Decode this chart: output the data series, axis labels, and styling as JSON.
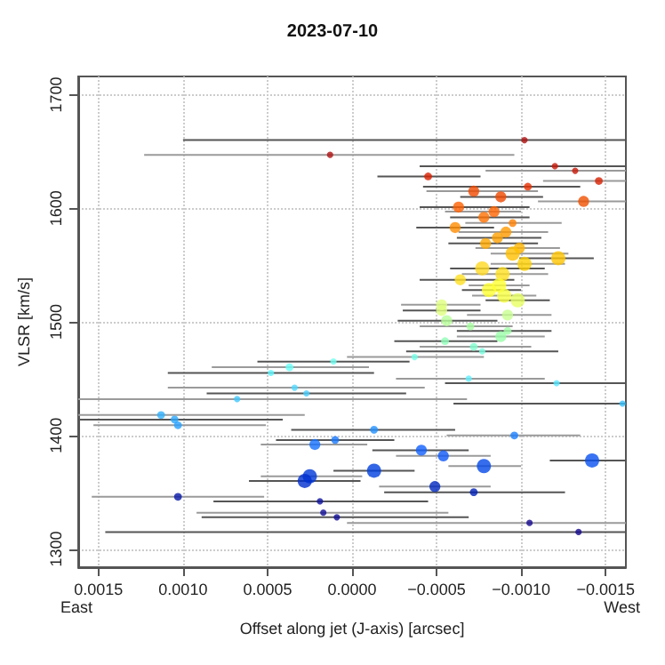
{
  "chart_data": {
    "type": "scatter",
    "title": "2023-07-10",
    "xlabel": "Offset along jet (J-axis) [arcsec]",
    "ylabel": "VLSR [km/s]",
    "annotations": [
      "East",
      "West"
    ],
    "xlim": [
      0.00162,
      -0.00162
    ],
    "ylim": [
      1284,
      1716
    ],
    "xticks": [
      {
        "value": 0.0015,
        "label": "0.0015"
      },
      {
        "value": 0.001,
        "label": "0.0010"
      },
      {
        "value": 0.0005,
        "label": "0.0005"
      },
      {
        "value": 0,
        "label": "0.0000"
      },
      {
        "value": -0.0005,
        "label": "−0.0005"
      },
      {
        "value": -0.001,
        "label": "−0.0010"
      },
      {
        "value": -0.0015,
        "label": "−0.0015"
      }
    ],
    "yticks": [
      1300,
      1400,
      1500,
      1600,
      1700
    ],
    "grid": true,
    "marker": "circle",
    "x": [
      -0.00102,
      0.00013,
      -0.0012,
      -0.00132,
      -0.00045,
      -0.00146,
      -0.00104,
      -0.00072,
      -0.00088,
      -0.00137,
      -0.00063,
      -0.00084,
      -0.00078,
      -0.00095,
      -0.00061,
      -0.00091,
      -0.00086,
      -0.00099,
      -0.00079,
      -0.00095,
      -0.00122,
      -0.00102,
      -0.00077,
      -0.00089,
      -0.00064,
      -0.00087,
      -0.00081,
      -0.0009,
      -0.00098,
      -0.00053,
      -0.00053,
      -0.00092,
      -0.00056,
      -0.0007,
      -0.00092,
      -0.00088,
      -0.00055,
      -0.00072,
      -0.00077,
      -0.00037,
      0.00011,
      0.00037,
      0.00048,
      -0.00069,
      -0.00121,
      0.00034,
      0.00027,
      0.00068,
      -0.0016,
      0.00113,
      0.00105,
      0.00103,
      -0.00013,
      -0.00096,
      0.0001,
      0.00022,
      -0.00041,
      -0.00054,
      -0.00142,
      -0.00078,
      -0.00013,
      0.00025,
      0.00028,
      -0.00049,
      -0.00072,
      0.00103,
      0.00019,
      0.00017,
      9e-05,
      -0.00105,
      -0.00134
    ],
    "values": [
      1660,
      1647,
      1637,
      1633,
      1628,
      1624,
      1619,
      1615,
      1610,
      1606,
      1601,
      1597,
      1592,
      1587,
      1583,
      1579,
      1574,
      1565,
      1569,
      1560,
      1556,
      1551,
      1547,
      1542,
      1537,
      1532,
      1528,
      1523,
      1519,
      1515,
      1510,
      1506,
      1501,
      1496,
      1492,
      1487,
      1483,
      1478,
      1474,
      1469,
      1465,
      1460,
      1455,
      1450,
      1446,
      1442,
      1437,
      1432,
      1428,
      1418,
      1414,
      1409,
      1405,
      1400,
      1396,
      1392,
      1387,
      1382,
      1378,
      1373,
      1369,
      1364,
      1360,
      1355,
      1350,
      1346,
      1342,
      1332,
      1328,
      1323,
      1315
    ],
    "sizes": [
      0.2,
      0.2,
      0.2,
      0.2,
      0.3,
      0.3,
      0.3,
      0.6,
      0.6,
      0.6,
      0.6,
      0.6,
      0.6,
      0.3,
      0.6,
      0.6,
      0.6,
      0.6,
      0.6,
      1,
      1,
      1,
      1,
      1,
      0.6,
      1,
      1,
      1,
      1,
      0.6,
      0.6,
      0.6,
      0.6,
      0.3,
      0.3,
      0.6,
      0.3,
      0.3,
      0.2,
      0.2,
      0.2,
      0.3,
      0.2,
      0.2,
      0.2,
      0.2,
      0.2,
      0.2,
      0.2,
      0.3,
      0.3,
      0.3,
      0.3,
      0.3,
      0.3,
      0.6,
      0.6,
      0.6,
      1,
      1,
      1,
      1,
      1,
      0.6,
      0.3,
      0.3,
      0.2,
      0.2,
      0.2,
      0.2,
      0.2
    ],
    "colors": [
      "#b01010",
      "#b01010",
      "#c81808",
      "#c81808",
      "#d82000",
      "#d82000",
      "#e83000",
      "#f04800",
      "#f04800",
      "#f05000",
      "#ff6000",
      "#ff6400",
      "#ff7000",
      "#ff8000",
      "#ff8c00",
      "#ff9a00",
      "#ffa000",
      "#ffb400",
      "#ffa800",
      "#ffc000",
      "#ffc400",
      "#ffd000",
      "#ffd820",
      "#ffe020",
      "#ffe020",
      "#ffff30",
      "#ffff30",
      "#f8ff40",
      "#e8ff60",
      "#e0ff80",
      "#e0ff80",
      "#c8ff90",
      "#b8ff98",
      "#a8ffa0",
      "#a0ffa8",
      "#98ffa8",
      "#90ffb8",
      "#80ffd0",
      "#78ffe0",
      "#70ffe8",
      "#70fff0",
      "#68fff8",
      "#60f8ff",
      "#60f0ff",
      "#58e8ff",
      "#50d8ff",
      "#48d0ff",
      "#40c8ff",
      "#38c0ff",
      "#30b0ff",
      "#2aa8ff",
      "#25a0ff",
      "#2090ff",
      "#1a80ff",
      "#1878ff",
      "#1470ff",
      "#1060ff",
      "#0c58f8",
      "#0850f0",
      "#0448e8",
      "#0040e0",
      "#0038d8",
      "#0030d0",
      "#0028c0",
      "#0020b8",
      "#0818a8",
      "#0c10a0",
      "#100c98",
      "#100c98",
      "#140890",
      "#140890"
    ],
    "xerrors": [
      [
        -0.00162,
        0.001
      ],
      [
        -0.00096,
        0.00123
      ],
      [
        -0.00162,
        -0.0004
      ],
      [
        -0.00162,
        -0.00079
      ],
      [
        -0.00076,
        -0.00015
      ],
      [
        -0.00162,
        -0.00113
      ],
      [
        -0.00135,
        -0.00042
      ],
      [
        -0.0011,
        -0.00044
      ],
      [
        -0.00113,
        -0.00064
      ],
      [
        -0.00162,
        -0.0011
      ],
      [
        -0.00105,
        -0.0004
      ],
      [
        -0.001,
        -0.00055
      ],
      [
        -0.00105,
        -0.00058
      ],
      [
        -0.00124,
        -0.00067
      ],
      [
        -0.00084,
        -0.00038
      ],
      [
        -0.00116,
        -0.00063
      ],
      [
        -0.00112,
        -0.00062
      ],
      [
        -0.00123,
        -0.00073
      ],
      [
        -0.0011,
        -0.00057
      ],
      [
        -0.00128,
        -0.00082
      ],
      [
        -0.00143,
        -0.00099
      ],
      [
        -0.00126,
        -0.00082
      ],
      [
        -0.00114,
        -0.00058
      ],
      [
        -0.00116,
        -0.00065
      ],
      [
        -0.00096,
        -0.0004
      ],
      [
        -0.00105,
        -0.00069
      ],
      [
        -0.001,
        -0.00065
      ],
      [
        -0.00109,
        -0.00071
      ],
      [
        -0.00117,
        -0.00079
      ],
      [
        -0.00076,
        -0.00029
      ],
      [
        -0.00076,
        -0.0003
      ],
      [
        -0.00118,
        -0.00068
      ],
      [
        -0.00086,
        -0.00027
      ],
      [
        -0.00095,
        -0.0004
      ],
      [
        -0.00118,
        -0.00062
      ],
      [
        -0.00114,
        -0.00062
      ],
      [
        -0.00086,
        -0.00025
      ],
      [
        -0.00106,
        -0.0004
      ],
      [
        -0.00122,
        -0.00032
      ],
      [
        -0.00078,
        3e-05
      ],
      [
        -0.00034,
        0.00056
      ],
      [
        -0.0001,
        0.00083
      ],
      [
        -0.00013,
        0.00109
      ],
      [
        -0.00114,
        -0.00026
      ],
      [
        -0.00162,
        -0.00055
      ],
      [
        -0.00043,
        0.00109
      ],
      [
        -0.00032,
        0.00086
      ],
      [
        -0.00068,
        0.00162
      ],
      [
        -0.00162,
        -0.0006
      ],
      [
        0.00028,
        0.00162
      ],
      [
        0.00041,
        0.00162
      ],
      [
        0.00051,
        0.00153
      ],
      [
        -0.00061,
        0.00036
      ],
      [
        -0.00135,
        -0.00056
      ],
      [
        -0.00025,
        0.00045
      ],
      [
        -9e-05,
        0.00054
      ],
      [
        -0.00069,
        -0.00012
      ],
      [
        -0.00082,
        -0.00026
      ],
      [
        -0.00162,
        -0.00117
      ],
      [
        -0.001,
        -0.00057
      ],
      [
        -0.00037,
        0.00011
      ],
      [
        -6e-05,
        0.00054
      ],
      [
        -5e-05,
        0.00061
      ],
      [
        -0.00082,
        -0.00016
      ],
      [
        -0.00126,
        -0.00019
      ],
      [
        0.00052,
        0.00154
      ],
      [
        -0.00045,
        0.00082
      ],
      [
        -0.00057,
        0.00092
      ],
      [
        -0.00069,
        0.00089
      ],
      [
        -0.00162,
        3e-05
      ],
      [
        -0.00162,
        0.00146
      ]
    ]
  }
}
